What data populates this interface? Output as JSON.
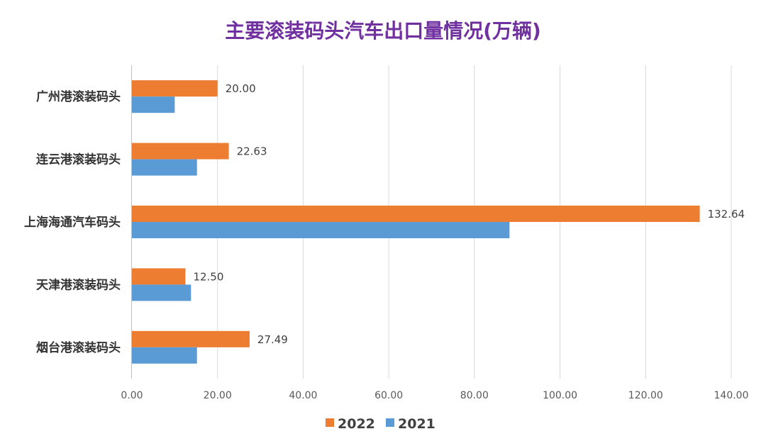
{
  "chart_data": {
    "type": "bar",
    "orientation": "horizontal",
    "title": "主要滚装码头汽车出口量情况(万辆)",
    "categories": [
      "广州港滚装码头",
      "连云港滚装码头",
      "上海海通汽车码头",
      "天津港滚装码头",
      "烟台港滚装码头"
    ],
    "series": [
      {
        "name": "2022",
        "color": "#ED7D31",
        "values": [
          20.0,
          22.63,
          132.64,
          12.5,
          27.49
        ],
        "labels": [
          "20.00",
          "22.63",
          "132.64",
          "12.50",
          "27.49"
        ]
      },
      {
        "name": "2021",
        "color": "#5B9BD5",
        "values": [
          10.0,
          15.2,
          88.2,
          13.8,
          15.2
        ]
      }
    ],
    "xlim": [
      0,
      140
    ],
    "xticks": [
      "0.00",
      "20.00",
      "40.00",
      "60.00",
      "80.00",
      "100.00",
      "120.00",
      "140.00"
    ],
    "grid": true,
    "legend": "bottom"
  }
}
